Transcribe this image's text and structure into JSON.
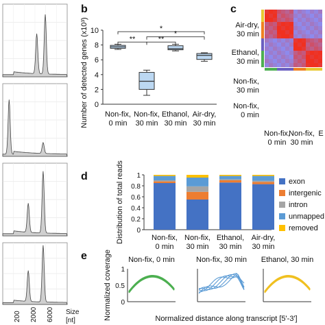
{
  "panel_letters": {
    "b": "b",
    "c": "c",
    "d": "d",
    "e": "e"
  },
  "panel_a": {
    "x_ticks": [
      "200",
      "2000",
      "6000"
    ],
    "x_label": [
      "Size",
      "[nt]"
    ],
    "traces": [
      {
        "peaks": [
          [
            32,
            0.55
          ],
          [
            40,
            0.82
          ]
        ]
      },
      {
        "peaks": [
          [
            6,
            0.75
          ],
          [
            38,
            0.15
          ]
        ]
      },
      {
        "peaks": [
          [
            24,
            0.4
          ],
          [
            38,
            0.85
          ]
        ]
      },
      {
        "peaks": [
          [
            24,
            0.5
          ],
          [
            38,
            0.92
          ]
        ]
      }
    ]
  },
  "chart_data": [
    {
      "type": "box",
      "panel": "b",
      "ylabel": "Number of detected genes (x10³)",
      "ylim": [
        0,
        10
      ],
      "yticks": [
        0,
        2,
        4,
        6,
        8,
        10
      ],
      "categories": [
        [
          "Non-fix,",
          "0 min"
        ],
        [
          "Non-fix,",
          "30 min"
        ],
        [
          "Ethanol,",
          "30 min"
        ],
        [
          "Air-dry,",
          "30 min"
        ]
      ],
      "boxes": [
        {
          "min": 7.4,
          "q1": 7.55,
          "median": 7.75,
          "q3": 7.95,
          "max": 8.1
        },
        {
          "min": 1.2,
          "q1": 2.0,
          "median": 3.1,
          "q3": 4.3,
          "max": 4.6
        },
        {
          "min": 7.2,
          "q1": 7.35,
          "median": 7.5,
          "q3": 7.9,
          "max": 8.1
        },
        {
          "min": 5.8,
          "q1": 6.05,
          "median": 6.6,
          "q3": 6.85,
          "max": 6.95
        }
      ],
      "significance": [
        {
          "from": 0,
          "to": 1,
          "level": 8.4,
          "label": "**"
        },
        {
          "from": 1,
          "to": 2,
          "level": 8.4,
          "label": "**"
        },
        {
          "from": 1,
          "to": 3,
          "level": 9.1,
          "label": "*"
        },
        {
          "from": 0,
          "to": 3,
          "level": 9.8,
          "label": "*"
        }
      ]
    },
    {
      "type": "heatmap",
      "panel": "c",
      "row_labels": [
        [
          "Air-dry,",
          "30 min"
        ],
        [
          "Ethanol,",
          "30 min"
        ],
        [
          "Non-fix,",
          "30 min"
        ],
        [
          "Non-fix,",
          "0 min"
        ]
      ],
      "col_labels": [
        [
          "Non-fix,",
          "0 min"
        ],
        [
          "Non-fix,",
          "30 min"
        ],
        [
          "E"
        ]
      ],
      "group_colors": [
        "#e8c830",
        "#f08020",
        "#6a5fc0",
        "#4caf50"
      ],
      "low_color": "#8c8cf0",
      "high_color": "#f03020"
    },
    {
      "type": "bar",
      "stacked": true,
      "panel": "d",
      "ylabel": "Distribution of total reads",
      "ylim": [
        0,
        1
      ],
      "yticks": [
        "0",
        "0.2",
        "0.4",
        "0.6",
        "0.8",
        "1"
      ],
      "categories": [
        [
          "Non-fix,",
          "0 min"
        ],
        [
          "Non-fix,",
          "30 min"
        ],
        [
          "Ethanol,",
          "30 min"
        ],
        [
          "Air-dry,",
          "30 min"
        ]
      ],
      "series": [
        {
          "name": "exon",
          "color": "#4472c4",
          "values": [
            0.85,
            0.55,
            0.86,
            0.83
          ]
        },
        {
          "name": "intergenic",
          "color": "#ed7d31",
          "values": [
            0.03,
            0.14,
            0.04,
            0.04
          ]
        },
        {
          "name": "intron",
          "color": "#a5a5a5",
          "values": [
            0.02,
            0.1,
            0.02,
            0.02
          ]
        },
        {
          "name": "unmapped",
          "color": "#5b9bd5",
          "values": [
            0.08,
            0.16,
            0.06,
            0.09
          ]
        },
        {
          "name": "removed",
          "color": "#ffc000",
          "values": [
            0.02,
            0.05,
            0.02,
            0.02
          ]
        }
      ]
    },
    {
      "type": "line",
      "panel": "e",
      "ylabel": "Normalized coverage",
      "xlabel": "Normalized distance along transcript [5'-3']",
      "ylim": [
        0,
        1
      ],
      "yticks": [
        "0",
        "0.5",
        "1"
      ],
      "subplots": [
        {
          "title": "Non-fix, 0 min",
          "color": "#4caf50"
        },
        {
          "title": "Non-fix, 30 min",
          "color": "#5b9bd5"
        },
        {
          "title": "Ethanol, 30 min",
          "color": "#f0c020"
        }
      ]
    }
  ]
}
